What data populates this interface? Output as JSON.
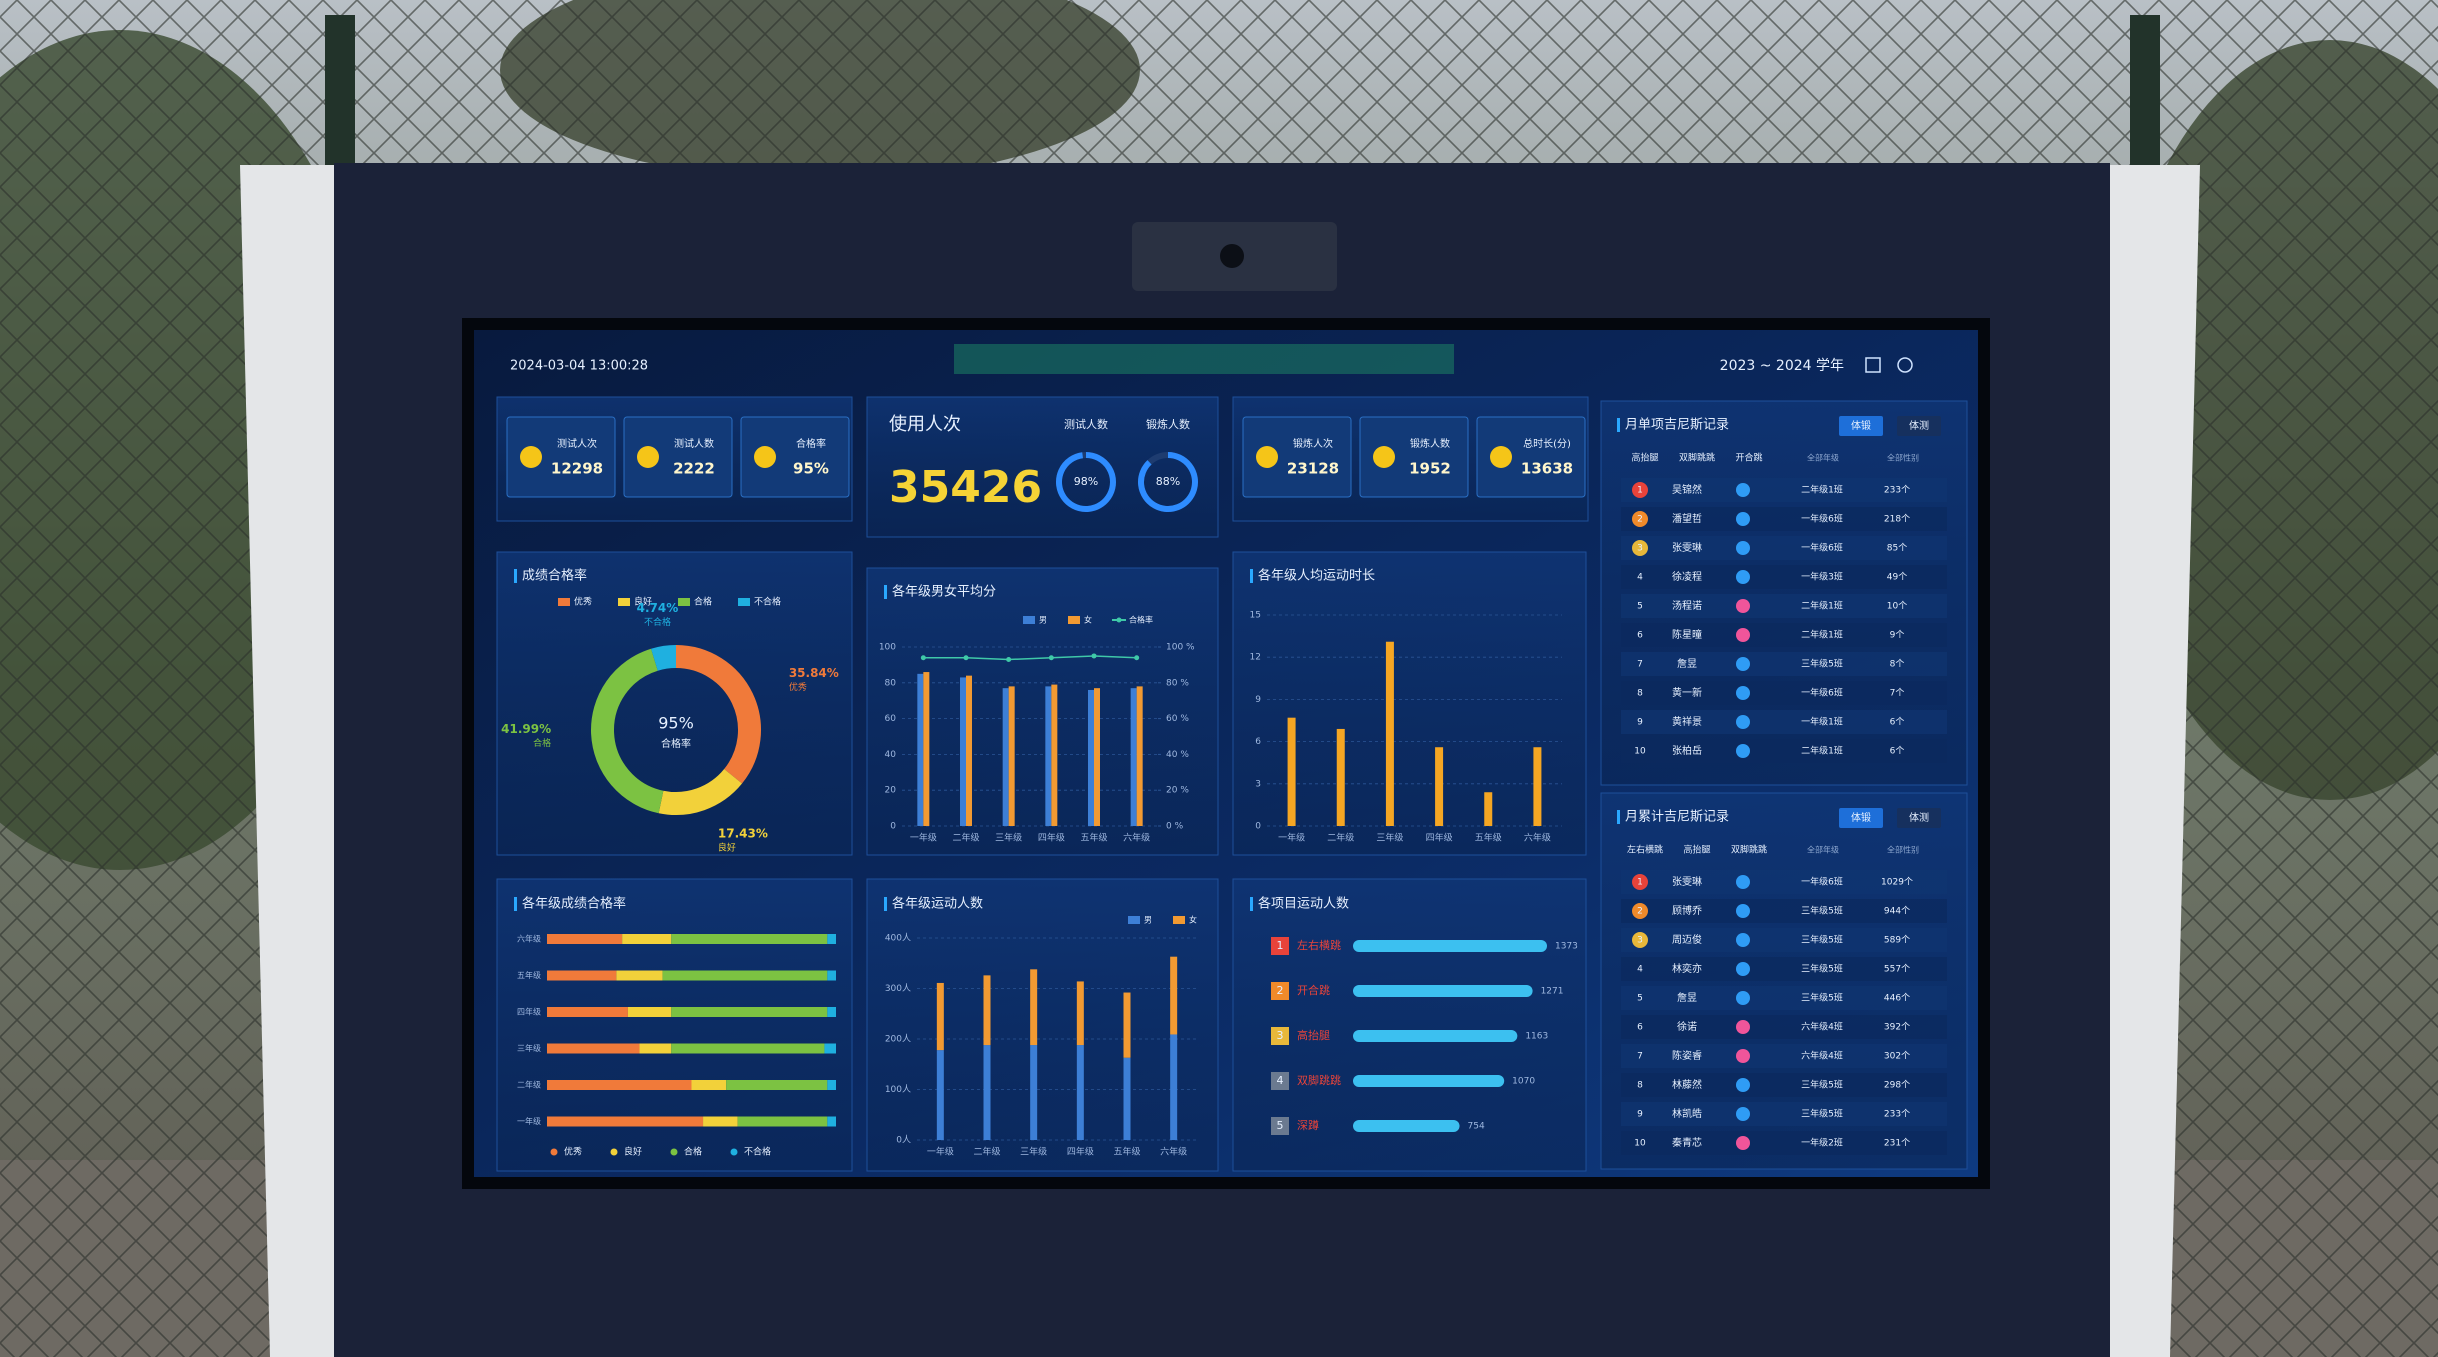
{
  "header": {
    "timestamp": "2024-03-04 13:00:28",
    "school_year": "2023 ~ 2024 学年"
  },
  "test_stats": [
    {
      "label": "测试人次",
      "value": "12298"
    },
    {
      "label": "测试人数",
      "value": "2222"
    },
    {
      "label": "合格率",
      "value": "95%"
    }
  ],
  "usage": {
    "label": "使用人次",
    "value": "35426",
    "rings": [
      {
        "label": "测试人数",
        "percent": 98,
        "percent_label": "98%"
      },
      {
        "label": "锻炼人数",
        "percent": 88,
        "percent_label": "88%"
      }
    ]
  },
  "exercise_stats": [
    {
      "label": "锻炼人次",
      "value": "23128"
    },
    {
      "label": "锻炼人数",
      "value": "1952"
    },
    {
      "label": "总时长(分)",
      "value": "13638"
    }
  ],
  "chart_data": [
    {
      "type": "pie",
      "donut": true,
      "title": "成绩合格率",
      "categories": [
        "优秀",
        "良好",
        "合格",
        "不合格"
      ],
      "values": [
        35.84,
        17.43,
        41.99,
        4.74
      ],
      "value_labels": [
        "35.84%",
        "17.43%",
        "41.99%",
        "4.74%"
      ],
      "colors": [
        "#f07a3a",
        "#f2d13a",
        "#7cc242",
        "#1fb0e0"
      ],
      "center_value": "95%",
      "center_label": "合格率"
    },
    {
      "type": "bar",
      "title": "各年级男女平均分",
      "categories": [
        "一年级",
        "二年级",
        "三年级",
        "四年级",
        "五年级",
        "六年级"
      ],
      "series": [
        {
          "name": "男",
          "color": "#3d7fd6",
          "values": [
            85,
            83,
            77,
            78,
            76,
            77
          ]
        },
        {
          "name": "女",
          "color": "#f29a32",
          "values": [
            86,
            84,
            78,
            79,
            77,
            78
          ]
        },
        {
          "name": "合格率",
          "color": "#3fc9a8",
          "type": "line",
          "axis": "y2",
          "values": [
            94,
            94,
            93,
            94,
            95,
            94
          ]
        }
      ],
      "ylim": [
        0,
        100
      ],
      "yticks": [
        0,
        20,
        40,
        60,
        80,
        100
      ],
      "y2lim": [
        0,
        100
      ],
      "y2ticks": [
        {
          "value": 0,
          "label": "0 %"
        },
        {
          "value": 20,
          "label": "20 %"
        },
        {
          "value": 40,
          "label": "40 %"
        },
        {
          "value": 60,
          "label": "60 %"
        },
        {
          "value": 80,
          "label": "80 %"
        },
        {
          "value": 100,
          "label": "100 %"
        }
      ],
      "grid": true
    },
    {
      "type": "bar",
      "title": "各年级人均运动时长",
      "categories": [
        "一年级",
        "二年级",
        "三年级",
        "四年级",
        "五年级",
        "六年级"
      ],
      "values": [
        7.7,
        6.9,
        13.1,
        5.6,
        2.4,
        5.6
      ],
      "color": "#f5a623",
      "ylim": [
        0,
        15
      ],
      "yticks": [
        0,
        3,
        6,
        9,
        12,
        15
      ],
      "grid": true
    },
    {
      "type": "hbar",
      "stacked": true,
      "title": "各年级成绩合格率",
      "categories": [
        "六年级",
        "五年级",
        "四年级",
        "三年级",
        "二年级",
        "一年级"
      ],
      "series": [
        {
          "name": "优秀",
          "color": "#f07a3a",
          "values": [
            26,
            24,
            28,
            32,
            50,
            54
          ]
        },
        {
          "name": "良好",
          "color": "#f2d13a",
          "values": [
            17,
            16,
            15,
            11,
            12,
            12
          ]
        },
        {
          "name": "合格",
          "color": "#7cc242",
          "values": [
            54,
            57,
            54,
            53,
            35,
            31
          ]
        },
        {
          "name": "不合格",
          "color": "#1fb0e0",
          "values": [
            3,
            3,
            3,
            4,
            3,
            3
          ]
        }
      ],
      "xlim": [
        0,
        100
      ]
    },
    {
      "type": "bar",
      "stacked": true,
      "title": "各年级运动人数",
      "categories": [
        "一年级",
        "二年级",
        "三年级",
        "四年级",
        "五年级",
        "六年级"
      ],
      "series": [
        {
          "name": "男",
          "color": "#3d7fd6",
          "values": [
            178,
            188,
            188,
            188,
            163,
            209
          ]
        },
        {
          "name": "女",
          "color": "#f29a32",
          "values": [
            133,
            138,
            150,
            126,
            129,
            154
          ]
        }
      ],
      "ylim": [
        0,
        400
      ],
      "yticks": [
        {
          "value": 0,
          "label": "0人"
        },
        {
          "value": 100,
          "label": "100人"
        },
        {
          "value": 200,
          "label": "200人"
        },
        {
          "value": 300,
          "label": "300人"
        },
        {
          "value": 400,
          "label": "400人"
        }
      ],
      "grid": true
    },
    {
      "type": "hbar",
      "title": "各项目运动人数",
      "ranks": [
        "1",
        "2",
        "3",
        "4",
        "5"
      ],
      "rank_colors": [
        "#e8433a",
        "#f08a2a",
        "#e8b83a",
        "#6b7a90",
        "#6b7a90"
      ],
      "categories": [
        "左右横跳",
        "开合跳",
        "高抬腿",
        "双脚跳跳",
        "深蹲"
      ],
      "values": [
        1373,
        1271,
        1163,
        1070,
        754
      ],
      "color": "#3cc0f0"
    }
  ],
  "single_record": {
    "title": "月单项吉尼斯记录",
    "tabs": [
      "体锻",
      "体测"
    ],
    "events": [
      "高抬腿",
      "双脚跳跳",
      "开合跳"
    ],
    "filters": [
      "全部年级",
      "全部性别"
    ],
    "medal_colors": [
      "#e8433a",
      "#f08a2a",
      "#e8b83a"
    ],
    "gender_colors": {
      "male": "#2f9cf5",
      "female": "#f0559a"
    },
    "rows": [
      {
        "rank": "1",
        "name": "吴锦然",
        "gender": "male",
        "class": "二年级1班",
        "count": "233个"
      },
      {
        "rank": "2",
        "name": "潘望哲",
        "gender": "male",
        "class": "一年级6班",
        "count": "218个"
      },
      {
        "rank": "3",
        "name": "张雯琳",
        "gender": "male",
        "class": "一年级6班",
        "count": "85个"
      },
      {
        "rank": "4",
        "name": "徐凌程",
        "gender": "male",
        "class": "一年级3班",
        "count": "49个"
      },
      {
        "rank": "5",
        "name": "汤程诺",
        "gender": "female",
        "class": "二年级1班",
        "count": "10个"
      },
      {
        "rank": "6",
        "name": "陈星曈",
        "gender": "female",
        "class": "二年级1班",
        "count": "9个"
      },
      {
        "rank": "7",
        "name": "詹昱",
        "gender": "male",
        "class": "三年级5班",
        "count": "8个"
      },
      {
        "rank": "8",
        "name": "黄一新",
        "gender": "male",
        "class": "一年级6班",
        "count": "7个"
      },
      {
        "rank": "9",
        "name": "黄祥景",
        "gender": "male",
        "class": "一年级1班",
        "count": "6个"
      },
      {
        "rank": "10",
        "name": "张柏岳",
        "gender": "male",
        "class": "二年级1班",
        "count": "6个"
      }
    ]
  },
  "cumulative_record": {
    "title": "月累计吉尼斯记录",
    "tabs": [
      "体锻",
      "体测"
    ],
    "events": [
      "左右横跳",
      "高抬腿",
      "双脚跳跳"
    ],
    "filters": [
      "全部年级",
      "全部性别"
    ],
    "medal_colors": [
      "#e8433a",
      "#f08a2a",
      "#e8b83a"
    ],
    "gender_colors": {
      "male": "#2f9cf5",
      "female": "#f0559a"
    },
    "rows": [
      {
        "rank": "1",
        "name": "张雯琳",
        "gender": "male",
        "class": "一年级6班",
        "count": "1029个"
      },
      {
        "rank": "2",
        "name": "顾博乔",
        "gender": "male",
        "class": "三年级5班",
        "count": "944个"
      },
      {
        "rank": "3",
        "name": "周迈俊",
        "gender": "male",
        "class": "三年级5班",
        "count": "589个"
      },
      {
        "rank": "4",
        "name": "林奕亦",
        "gender": "male",
        "class": "三年级5班",
        "count": "557个"
      },
      {
        "rank": "5",
        "name": "詹昱",
        "gender": "male",
        "class": "三年级5班",
        "count": "446个"
      },
      {
        "rank": "6",
        "name": "徐诺",
        "gender": "female",
        "class": "六年级4班",
        "count": "392个"
      },
      {
        "rank": "7",
        "name": "陈姿睿",
        "gender": "female",
        "class": "六年级4班",
        "count": "302个"
      },
      {
        "rank": "8",
        "name": "林藤然",
        "gender": "male",
        "class": "三年级5班",
        "count": "298个"
      },
      {
        "rank": "9",
        "name": "林凯皓",
        "gender": "male",
        "class": "三年级5班",
        "count": "233个"
      },
      {
        "rank": "10",
        "name": "秦青芯",
        "gender": "female",
        "class": "一年级2班",
        "count": "231个"
      }
    ]
  }
}
